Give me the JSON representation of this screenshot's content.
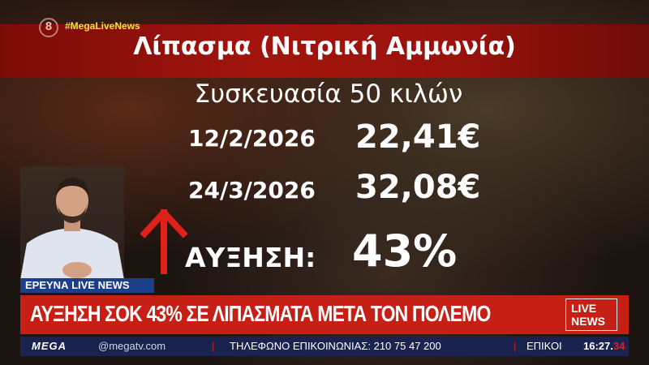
{
  "channel": {
    "logo_number": "8",
    "hashtag": "#MegaLiveNews",
    "brand": "MEGA"
  },
  "graphic": {
    "title": "Λίπασμα (Νιτρική Αμμωνία)",
    "package": "Συσκευασία 50 κιλών",
    "rows": [
      {
        "date": "12/2/2026",
        "price": "22,41€"
      },
      {
        "date": "24/3/2026",
        "price": "32,08€"
      }
    ],
    "increase_label": "ΑΥΞΗΣΗ:",
    "increase_value": "43%",
    "arrow_color": "#e0201a"
  },
  "lower_third": {
    "segment": "ΕΡΕΥΝΑ LIVE NEWS",
    "headline": "ΑΥΞΗΣΗ ΣΟΚ 43% ΣΕ ΛΙΠΑΣΜΑΤΑ ΜΕΤΑ ΤΟΝ ΠΟΛΕΜΟ",
    "show_logo": "LIVE NEWS"
  },
  "ticker": {
    "email": "@megatv.com",
    "phone": "ΤΗΛΕΦΩΝΟ ΕΠΙΚΟΙΝΩΝΙΑΣ: 210 75 47 200",
    "next": "ΕΠΙΚΟΙ",
    "time": "16:27.",
    "seconds": "34"
  }
}
